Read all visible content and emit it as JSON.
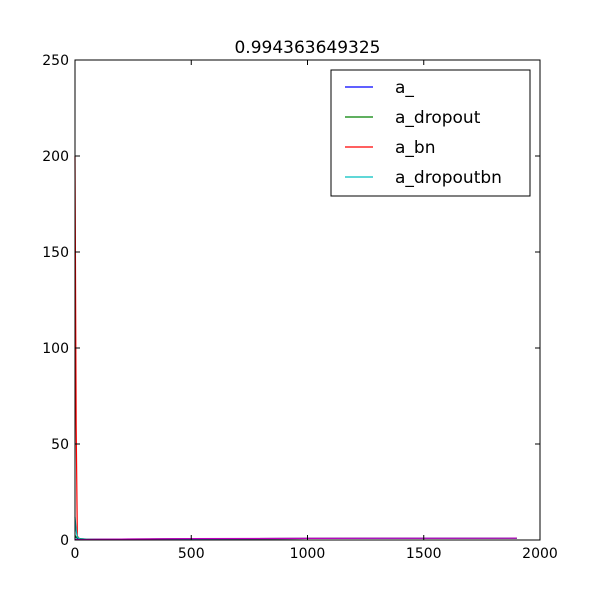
{
  "chart_data": {
    "type": "line",
    "title": "0.994363649325",
    "xlabel": "",
    "ylabel": "",
    "xlim": [
      0,
      2000
    ],
    "ylim": [
      0,
      250
    ],
    "xticks": [
      0,
      500,
      1000,
      1500,
      2000
    ],
    "yticks": [
      0,
      50,
      100,
      150,
      200,
      250
    ],
    "grid": false,
    "legend_position": "top-right",
    "series": [
      {
        "name": "a_",
        "color": "#0000ff",
        "x": [
          0,
          5,
          10,
          20,
          50,
          100,
          200,
          500,
          1000,
          1500,
          1900
        ],
        "y": [
          2.3,
          1.2,
          0.8,
          0.6,
          0.4,
          0.35,
          0.4,
          0.6,
          0.8,
          0.9,
          0.95
        ]
      },
      {
        "name": "a_dropout",
        "color": "#008000",
        "x": [
          0,
          5,
          10,
          20,
          50,
          100,
          200,
          500,
          1000,
          1500,
          1900
        ],
        "y": [
          2.3,
          1.5,
          1.0,
          0.7,
          0.5,
          0.4,
          0.45,
          0.6,
          0.8,
          0.9,
          0.95
        ]
      },
      {
        "name": "a_bn",
        "color": "#ff0000",
        "x": [
          0,
          5,
          10,
          20,
          50,
          100,
          200,
          500,
          1000,
          1500,
          1900
        ],
        "y": [
          200,
          60,
          2,
          0.5,
          0.3,
          0.3,
          0.4,
          0.6,
          0.8,
          0.9,
          0.95
        ]
      },
      {
        "name": "a_dropoutbn",
        "color": "#00bfbf",
        "x": [
          0,
          5,
          10,
          20,
          50,
          100,
          200,
          500,
          1000,
          1500,
          1900
        ],
        "y": [
          12,
          5,
          1.5,
          0.6,
          0.4,
          0.35,
          0.4,
          0.6,
          0.8,
          0.9,
          0.95
        ]
      },
      {
        "color": "#bf00bf",
        "x": [
          0,
          50,
          100,
          200,
          500,
          1000,
          1500,
          1900
        ],
        "y": [
          0.2,
          0.3,
          0.4,
          0.5,
          0.7,
          0.85,
          0.92,
          0.96
        ]
      }
    ]
  }
}
